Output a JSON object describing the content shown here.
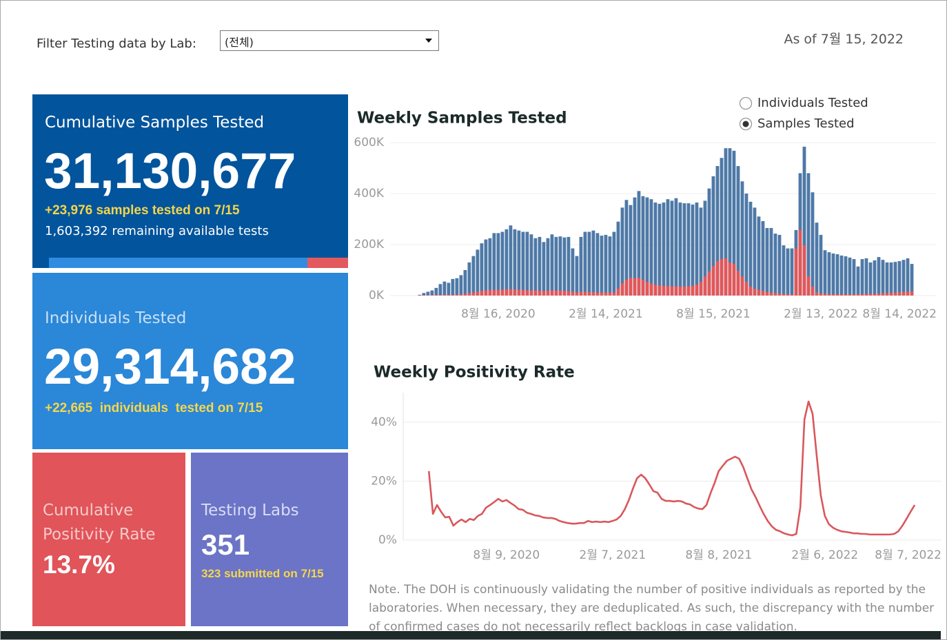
{
  "filter": {
    "label": "Filter Testing data by Lab:",
    "selected": "(전체)"
  },
  "as_of": "As of 7월 15, 2022",
  "kpis": {
    "samples": {
      "title": "Cumulative Samples Tested",
      "value": "31,130,677",
      "delta": "+23,976 samples tested on 7/15",
      "remaining": "1,603,392 remaining available tests"
    },
    "individuals": {
      "title": "Individuals Tested",
      "value": "29,314,682",
      "delta": "+22,665  individuals  tested on 7/15"
    },
    "positivity": {
      "title": [
        "Cumulative",
        "Positivity Rate"
      ],
      "value": "13.7%"
    },
    "labs": {
      "title": "Testing Labs",
      "value": "351",
      "sub": "323 submitted on 7/15"
    }
  },
  "view_toggle": {
    "options": [
      "Individuals Tested",
      "Samples Tested"
    ],
    "selected": 1
  },
  "note": "Note. The DOH is continuously validating the number of positive individuals as reported by the laboratories. When necessary, they are deduplicated. As such, the discrepancy with the number of confirmed cases do not necessarily reflect backlogs in case validation.",
  "chart_data": [
    {
      "type": "bar",
      "title": "Weekly Samples Tested",
      "x": [
        "2020-04-05",
        "2020-04-12",
        "2020-04-19",
        "2020-04-26",
        "2020-05-03",
        "2020-05-10",
        "2020-05-17",
        "2020-05-24",
        "2020-05-31",
        "2020-06-07",
        "2020-06-14",
        "2020-06-21",
        "2020-06-28",
        "2020-07-05",
        "2020-07-12",
        "2020-07-19",
        "2020-07-26",
        "2020-08-02",
        "2020-08-09",
        "2020-08-16",
        "2020-08-23",
        "2020-08-30",
        "2020-09-06",
        "2020-09-13",
        "2020-09-20",
        "2020-09-27",
        "2020-10-04",
        "2020-10-11",
        "2020-10-18",
        "2020-10-25",
        "2020-11-01",
        "2020-11-08",
        "2020-11-15",
        "2020-11-22",
        "2020-11-29",
        "2020-12-06",
        "2020-12-13",
        "2020-12-20",
        "2020-12-27",
        "2021-01-03",
        "2021-01-10",
        "2021-01-17",
        "2021-01-24",
        "2021-01-31",
        "2021-02-07",
        "2021-02-14",
        "2021-02-21",
        "2021-02-28",
        "2021-03-07",
        "2021-03-14",
        "2021-03-21",
        "2021-03-28",
        "2021-04-04",
        "2021-04-11",
        "2021-04-18",
        "2021-04-25",
        "2021-05-02",
        "2021-05-09",
        "2021-05-16",
        "2021-05-23",
        "2021-05-30",
        "2021-06-06",
        "2021-06-13",
        "2021-06-20",
        "2021-06-27",
        "2021-07-04",
        "2021-07-11",
        "2021-07-18",
        "2021-07-25",
        "2021-08-01",
        "2021-08-08",
        "2021-08-15",
        "2021-08-22",
        "2021-08-29",
        "2021-09-05",
        "2021-09-12",
        "2021-09-19",
        "2021-09-26",
        "2021-10-03",
        "2021-10-10",
        "2021-10-17",
        "2021-10-24",
        "2021-10-31",
        "2021-11-07",
        "2021-11-14",
        "2021-11-21",
        "2021-11-28",
        "2021-12-05",
        "2021-12-12",
        "2021-12-19",
        "2021-12-26",
        "2022-01-02",
        "2022-01-09",
        "2022-01-16",
        "2022-01-23",
        "2022-01-30",
        "2022-02-06",
        "2022-02-13",
        "2022-02-20",
        "2022-02-27",
        "2022-03-06",
        "2022-03-13",
        "2022-03-20",
        "2022-03-27",
        "2022-04-03",
        "2022-04-10",
        "2022-04-17",
        "2022-04-24",
        "2022-05-01",
        "2022-05-08",
        "2022-05-15",
        "2022-05-22",
        "2022-05-29",
        "2022-06-05",
        "2022-06-12",
        "2022-06-19",
        "2022-06-26",
        "2022-07-03",
        "2022-07-10",
        "2022-07-17"
      ],
      "series": [
        {
          "color": "#4e79a7",
          "values": [
            3000,
            10000,
            15000,
            20000,
            30000,
            45000,
            55000,
            50000,
            65000,
            68000,
            80000,
            100000,
            130000,
            155000,
            180000,
            205000,
            220000,
            225000,
            245000,
            245000,
            250000,
            260000,
            275000,
            260000,
            255000,
            250000,
            250000,
            240000,
            225000,
            230000,
            210000,
            225000,
            240000,
            230000,
            232000,
            228000,
            230000,
            185000,
            155000,
            230000,
            250000,
            250000,
            255000,
            245000,
            235000,
            238000,
            232000,
            250000,
            290000,
            345000,
            375000,
            355000,
            385000,
            410000,
            390000,
            385000,
            378000,
            365000,
            360000,
            365000,
            378000,
            372000,
            382000,
            365000,
            362000,
            362000,
            357000,
            365000,
            345000,
            372000,
            420000,
            468000,
            508000,
            540000,
            578000,
            578000,
            568000,
            508000,
            448000,
            400000,
            368000,
            345000,
            310000,
            292000,
            265000,
            265000,
            243000,
            238000,
            197000,
            185000,
            185000,
            257000,
            480000,
            584000,
            480000,
            405000,
            286000,
            238000,
            178000,
            170000,
            165000,
            162000,
            157000,
            154000,
            149000,
            143000,
            114000,
            143000,
            146000,
            130000,
            138000,
            151000,
            140000,
            130000,
            130000,
            132000,
            135000,
            140000,
            146000,
            124000
          ]
        },
        {
          "color": "#e15759",
          "values": [
            1000,
            1000,
            2000,
            2000,
            2000,
            3000,
            3000,
            3000,
            3000,
            4000,
            5000,
            7000,
            10000,
            12000,
            15000,
            18000,
            20000,
            22000,
            22000,
            22000,
            23000,
            24000,
            25000,
            24000,
            22000,
            22000,
            21000,
            20000,
            20000,
            19000,
            18000,
            19000,
            20000,
            20000,
            19000,
            18000,
            17000,
            15000,
            12000,
            15000,
            15000,
            14000,
            13000,
            12000,
            12000,
            12000,
            12000,
            12000,
            27000,
            48000,
            62000,
            70000,
            68000,
            70000,
            62000,
            54000,
            48000,
            42000,
            40000,
            38000,
            37000,
            36000,
            36000,
            35000,
            35000,
            36000,
            38000,
            43000,
            54000,
            75000,
            95000,
            116000,
            135000,
            143000,
            146000,
            130000,
            124000,
            97000,
            75000,
            54000,
            35000,
            27000,
            22000,
            18000,
            14000,
            12000,
            10000,
            8000,
            6000,
            5000,
            5000,
            185000,
            257000,
            197000,
            75000,
            35000,
            13000,
            8000,
            7000,
            6000,
            6000,
            5000,
            5000,
            5000,
            5000,
            5000,
            6000,
            6000,
            6000,
            7000,
            7000,
            8000,
            9000,
            10000,
            11000,
            12000,
            13000,
            14000,
            15000,
            16000
          ]
        }
      ],
      "xlim": [
        "2020-02-15",
        "2022-08-28"
      ],
      "xticks": [
        {
          "value": "2020-08-16",
          "label": "8월 16, 2020"
        },
        {
          "value": "2021-02-14",
          "label": "2월 14, 2021"
        },
        {
          "value": "2021-08-15",
          "label": "8월 15, 2021"
        },
        {
          "value": "2022-02-13",
          "label": "2월 13, 2022"
        },
        {
          "value": "2022-08-14",
          "label": "8월 14, 2022"
        }
      ],
      "ylim": [
        0,
        600000
      ],
      "yticks": [
        {
          "value": 0,
          "label": "0K"
        },
        {
          "value": 200000,
          "label": "200K"
        },
        {
          "value": 400000,
          "label": "400K"
        },
        {
          "value": 600000,
          "label": "600K"
        }
      ],
      "grid": true
    },
    {
      "type": "line",
      "title": "Weekly Positivity Rate",
      "x": [
        "2020-03-29",
        "2020-04-05",
        "2020-04-12",
        "2020-04-19",
        "2020-04-26",
        "2020-05-03",
        "2020-05-10",
        "2020-05-17",
        "2020-05-24",
        "2020-05-31",
        "2020-06-07",
        "2020-06-14",
        "2020-06-21",
        "2020-06-28",
        "2020-07-05",
        "2020-07-12",
        "2020-07-19",
        "2020-07-26",
        "2020-08-02",
        "2020-08-09",
        "2020-08-16",
        "2020-08-23",
        "2020-08-30",
        "2020-09-06",
        "2020-09-13",
        "2020-09-20",
        "2020-09-27",
        "2020-10-04",
        "2020-10-11",
        "2020-10-18",
        "2020-10-25",
        "2020-11-01",
        "2020-11-08",
        "2020-11-15",
        "2020-11-22",
        "2020-11-29",
        "2020-12-06",
        "2020-12-13",
        "2020-12-20",
        "2020-12-27",
        "2021-01-03",
        "2021-01-10",
        "2021-01-17",
        "2021-01-24",
        "2021-01-31",
        "2021-02-07",
        "2021-02-14",
        "2021-02-21",
        "2021-02-28",
        "2021-03-07",
        "2021-03-14",
        "2021-03-21",
        "2021-03-28",
        "2021-04-04",
        "2021-04-11",
        "2021-04-18",
        "2021-04-25",
        "2021-05-02",
        "2021-05-09",
        "2021-05-16",
        "2021-05-23",
        "2021-05-30",
        "2021-06-06",
        "2021-06-13",
        "2021-06-20",
        "2021-06-27",
        "2021-07-04",
        "2021-07-11",
        "2021-07-18",
        "2021-07-25",
        "2021-08-01",
        "2021-08-08",
        "2021-08-15",
        "2021-08-22",
        "2021-08-29",
        "2021-09-05",
        "2021-09-12",
        "2021-09-19",
        "2021-09-26",
        "2021-10-03",
        "2021-10-10",
        "2021-10-17",
        "2021-10-24",
        "2021-10-31",
        "2021-11-07",
        "2021-11-14",
        "2021-11-21",
        "2021-11-28",
        "2021-12-05",
        "2021-12-12",
        "2021-12-19",
        "2021-12-26",
        "2022-01-02",
        "2022-01-09",
        "2022-01-16",
        "2022-01-23",
        "2022-01-30",
        "2022-02-06",
        "2022-02-13",
        "2022-02-20",
        "2022-02-27",
        "2022-03-06",
        "2022-03-13",
        "2022-03-20",
        "2022-03-27",
        "2022-04-03",
        "2022-04-10",
        "2022-04-17",
        "2022-04-24",
        "2022-05-01",
        "2022-05-08",
        "2022-05-15",
        "2022-05-22",
        "2022-05-29",
        "2022-06-05",
        "2022-06-12",
        "2022-06-19",
        "2022-06-26",
        "2022-07-03",
        "2022-07-10"
      ],
      "values": [
        23.4,
        8.9,
        11.9,
        9.6,
        7.7,
        7.9,
        4.9,
        6.1,
        7,
        6.1,
        7.2,
        6.8,
        8.2,
        8.9,
        11,
        11.9,
        12.9,
        14,
        13.1,
        13.6,
        12.6,
        11.7,
        10.5,
        10.3,
        9.3,
        8.9,
        8.4,
        8.2,
        7.7,
        7.5,
        7.5,
        7.2,
        6.5,
        6.1,
        5.8,
        5.6,
        5.6,
        5.8,
        5.8,
        6.5,
        6.1,
        6.3,
        6.1,
        6.3,
        6.1,
        6.5,
        7,
        8.2,
        10.5,
        13.6,
        17.5,
        21,
        22.2,
        21,
        18.9,
        16.6,
        16.1,
        14,
        13.3,
        13.3,
        13.1,
        13.3,
        13.1,
        12.4,
        12.1,
        11.2,
        10.7,
        10.5,
        11.9,
        15.9,
        19.4,
        23.4,
        25.2,
        26.9,
        27.6,
        28.3,
        27.6,
        24.8,
        21,
        17.3,
        14.7,
        11.7,
        8.9,
        6.5,
        4.7,
        3.5,
        3,
        2.3,
        1.9,
        1.6,
        2.1,
        11.2,
        40.9,
        47,
        42.8,
        28.7,
        15.2,
        8.2,
        5.4,
        4.2,
        3.5,
        3,
        2.8,
        2.6,
        2.3,
        2.3,
        2.1,
        2.1,
        1.9,
        1.9,
        1.9,
        1.9,
        1.9,
        1.9,
        2.1,
        3,
        4.9,
        7.2,
        9.6,
        11.9
      ],
      "color": "#d9575b",
      "xlim": [
        "2020-02-14",
        "2022-08-25"
      ],
      "xticks": [
        {
          "value": "2020-08-09",
          "label": "8월 9, 2020"
        },
        {
          "value": "2021-02-07",
          "label": "2월 7, 2021"
        },
        {
          "value": "2021-08-08",
          "label": "8월 8, 2021"
        },
        {
          "value": "2022-02-06",
          "label": "2월 6, 2022"
        },
        {
          "value": "2022-08-07",
          "label": "8월 7, 2022"
        }
      ],
      "ylim": [
        0,
        50
      ],
      "yticks": [
        {
          "value": 0,
          "label": "0%"
        },
        {
          "value": 20,
          "label": "20%"
        },
        {
          "value": 40,
          "label": "40%"
        }
      ],
      "grid": true
    }
  ]
}
